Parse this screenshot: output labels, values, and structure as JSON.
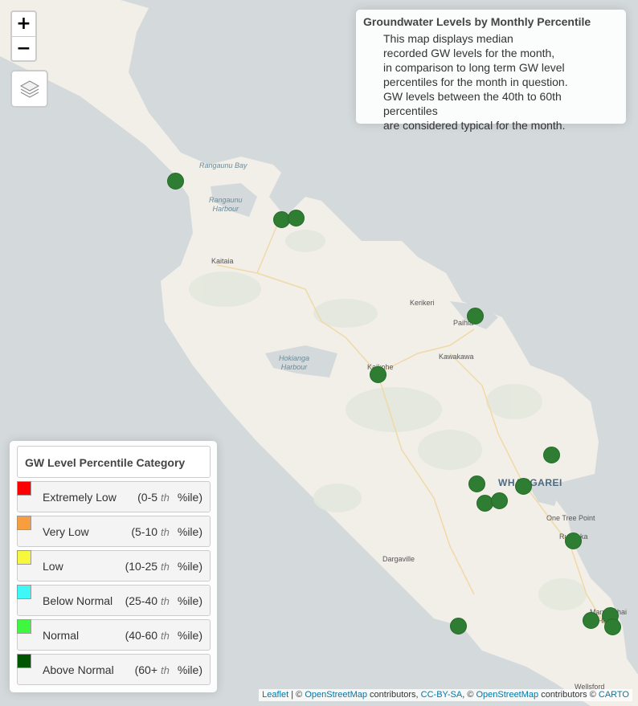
{
  "zoom": {
    "in_label": "+",
    "out_label": "−"
  },
  "layers_icon": "layers-icon",
  "info": {
    "title": "Groundwater Levels by Monthly Percentile",
    "lines": [
      "This map displays median",
      "recorded GW levels for the month,",
      "in comparison to long term GW level",
      "percentiles for the month in question.",
      "GW levels between the 40th to 60th percentiles",
      "are considered typical for the month."
    ]
  },
  "places": {
    "rangaunu_bay": "Rangaunu Bay",
    "rangaunu_harbour_1": "Rangaunu",
    "rangaunu_harbour_2": "Harbour",
    "kaitaia": "Kaitaia",
    "kerikeri": "Kerikeri",
    "paihia": "Paihia",
    "kawakawa": "Kawakawa",
    "hokianga_1": "Hokianga",
    "hokianga_2": "Harbour",
    "kaikohe": "Kaikohe",
    "whangarei": "WHANGAREI",
    "one_tree_point": "One Tree Point",
    "ruakaka": "Ruakaka",
    "dargaville": "Dargaville",
    "mangawhai_1": "Mangawhai",
    "mangawhai_2": "Heads",
    "wellsford": "Wellsford"
  },
  "marker_color": "#2e7d32",
  "marker_category": "Above Normal",
  "legend": {
    "title": "GW Level Percentile Category",
    "percentile_suffix": "%ile)",
    "th": "th",
    "items": [
      {
        "name": "Extremely Low",
        "range": "(0-5",
        "color": "#ff0000"
      },
      {
        "name": "Very Low",
        "range": "(5-10",
        "color": "#f79e3e"
      },
      {
        "name": "Low",
        "range": "(10-25",
        "color": "#f7f73e"
      },
      {
        "name": "Below Normal",
        "range": "(25-40",
        "color": "#3ef7f7"
      },
      {
        "name": "Normal",
        "range": "(40-60",
        "color": "#3ef73e"
      },
      {
        "name": "Above Normal",
        "range": "(60+",
        "color": "#005500"
      }
    ]
  },
  "attribution": {
    "leaflet": "Leaflet",
    "sep1": " | © ",
    "osm1": "OpenStreetMap",
    "contrib1": " contributors, ",
    "ccbysa": "CC-BY-SA",
    "sep2": ", © ",
    "osm2": "OpenStreetMap",
    "contrib2": " contributors © ",
    "carto": "CARTO"
  }
}
